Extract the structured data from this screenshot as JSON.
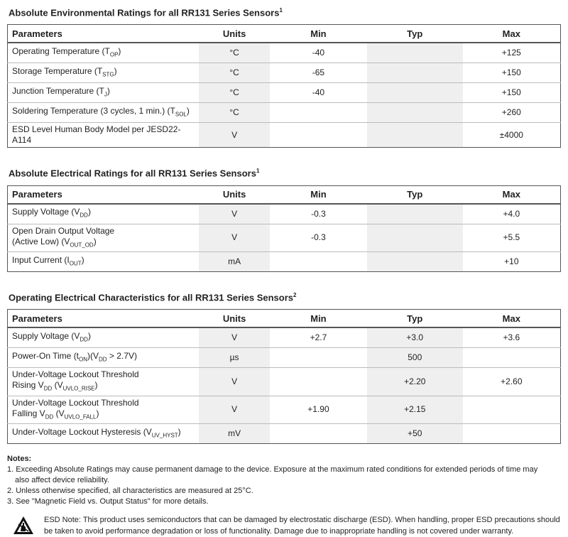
{
  "tables": [
    {
      "title": "Absolute Environmental Ratings for all RR131 Series Sensors",
      "sup": "1",
      "columns": [
        "Parameters",
        "Units",
        "Min",
        "Typ",
        "Max"
      ],
      "rows": [
        {
          "param": [
            "Operating Temperature (T",
            "OP",
            ")"
          ],
          "units": "°C",
          "min": "-40",
          "typ": null,
          "max": "+125"
        },
        {
          "param": [
            "Storage Temperature (T",
            "STG",
            ")"
          ],
          "units": "°C",
          "min": "-65",
          "typ": null,
          "max": "+150"
        },
        {
          "param": [
            "Junction Temperature (T",
            "J",
            ")"
          ],
          "units": "°C",
          "min": "-40",
          "typ": null,
          "max": "+150"
        },
        {
          "param": [
            "Soldering Temperature (3 cycles, 1 min.) (T",
            "SOL",
            ")"
          ],
          "units": "°C",
          "min": null,
          "typ": null,
          "max": "+260"
        },
        {
          "param": [
            "ESD Level Human Body Model per JESD22-A114"
          ],
          "units": "V",
          "min": null,
          "typ": null,
          "max": "±4000"
        }
      ]
    },
    {
      "title": "Absolute Electrical Ratings for all RR131 Series Sensors",
      "sup": "1",
      "columns": [
        "Parameters",
        "Units",
        "Min",
        "Typ",
        "Max"
      ],
      "rows": [
        {
          "param": [
            "Supply Voltage (V",
            "DD",
            ")"
          ],
          "units": "V",
          "min": "-0.3",
          "typ": null,
          "max": "+4.0"
        },
        {
          "param": [
            "Open Drain Output Voltage\n(Active Low) (V",
            "OUT_OD",
            ")"
          ],
          "units": "V",
          "min": "-0.3",
          "typ": null,
          "max": "+5.5"
        },
        {
          "param": [
            "Input Current (I",
            "OUT",
            ")"
          ],
          "units": "mA",
          "min": null,
          "typ": null,
          "max": "+10"
        }
      ]
    },
    {
      "title": "Operating Electrical Characteristics for all RR131 Series Sensors",
      "sup": "2",
      "columns": [
        "Parameters",
        "Units",
        "Min",
        "Typ",
        "Max"
      ],
      "rows": [
        {
          "param": [
            "Supply Voltage (V",
            "DD",
            ")"
          ],
          "units": "V",
          "min": "+2.7",
          "typ": "+3.0",
          "max": "+3.6"
        },
        {
          "param": [
            "Power-On Time (t",
            "ON",
            ")(V",
            "DD",
            " > 2.7V)"
          ],
          "units": "µs",
          "min": null,
          "typ": "500",
          "max": null
        },
        {
          "param": [
            "Under-Voltage Lockout Threshold\nRising V",
            "DD",
            " (V",
            "UVLO_RISE",
            ")"
          ],
          "units": "V",
          "min": null,
          "typ": "+2.20",
          "max": "+2.60"
        },
        {
          "param": [
            "Under-Voltage Lockout Threshold\nFalling V",
            "DD",
            " (V",
            "UVLO_FALL",
            ")"
          ],
          "units": "V",
          "min": "+1.90",
          "typ": "+2.15",
          "max": null
        },
        {
          "param": [
            "Under-Voltage Lockout Hysteresis (V",
            "UV_HYST",
            ")"
          ],
          "units": "mV",
          "min": null,
          "typ": "+50",
          "max": null
        }
      ]
    }
  ],
  "notes": {
    "heading": "Notes:",
    "items": [
      "1. Exceeding Absolute Ratings may cause permanent damage to the device. Exposure at the maximum rated conditions for extended periods of time may also affect device reliability.",
      "2. Unless otherwise specified, all characteristics are measured at 25°C.",
      "3. See \"Magnetic Field vs. Output Status\" for more details."
    ]
  },
  "esd_note": "ESD Note: This product uses semiconductors that can be damaged by electrostatic discharge (ESD). When handling, proper ESD precautions should be taken to avoid performance degradation or loss of functionality. Damage due to inappropriate handling is not covered under warranty."
}
